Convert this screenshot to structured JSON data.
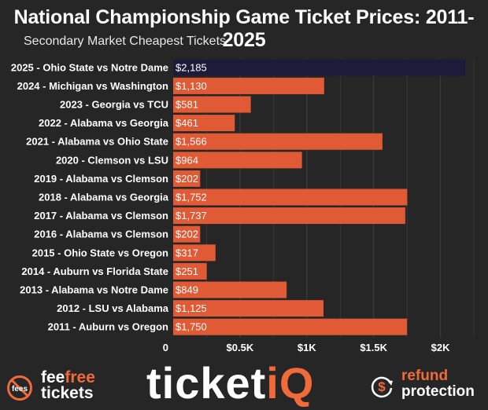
{
  "chart_data": {
    "type": "bar",
    "orientation": "horizontal",
    "title": "National Championship Game Ticket Prices: 2011-2025",
    "subtitle": "Secondary Market Cheapest Tickets",
    "categories": [
      "2025 - Ohio State vs Notre Dame",
      "2024 - Michigan vs Washington",
      "2023 - Georgia vs TCU",
      "2022 - Alabama vs Georgia",
      "2021 - Alabama vs Ohio State",
      "2020 - Clemson vs LSU",
      "2019 - Alabama vs Clemson",
      "2018 - Alabama vs Georgia",
      "2017 - Alabama vs Clemson",
      "2016 - Alabama vs Clemson",
      "2015 - Ohio State vs Oregon",
      "2014 - Auburn vs Florida State",
      "2013 - Alabama vs Notre Dame",
      "2012 - LSU vs Alabama",
      "2011 - Auburn vs Oregon"
    ],
    "values": [
      2185,
      1130,
      581,
      461,
      1566,
      964,
      202,
      1752,
      1737,
      202,
      317,
      251,
      849,
      1125,
      1750
    ],
    "value_labels": [
      "$2,185",
      "$1,130",
      "$581",
      "$461",
      "$1,566",
      "$964",
      "$202",
      "$1,752",
      "$1,737",
      "$202",
      "$317",
      "$251",
      "$849",
      "$1,125",
      "$1,750"
    ],
    "xlim": [
      0,
      2250
    ],
    "xticks": [
      0,
      500,
      1000,
      1500,
      2000
    ],
    "xtick_labels": [
      "0",
      "$0.5K",
      "$1K",
      "$1.5K",
      "$2K"
    ],
    "grid": true,
    "colors": {
      "bar": "#e05a35",
      "highlight_bar": "#1c1c3a",
      "background": "#262626",
      "grid": "#3c3c3c"
    },
    "highlight_index": 0
  },
  "footer": {
    "left_logo": {
      "line1a": "fee",
      "line1b": "free",
      "line2": "tickets",
      "icon": "no-fees-icon",
      "icon_text": "fees"
    },
    "center_logo": {
      "text_main": "ticket",
      "text_accent": "iQ"
    },
    "right_logo": {
      "line1": "refund",
      "line2": "protection",
      "icon": "dollar-refresh-icon",
      "icon_text": "$"
    }
  }
}
